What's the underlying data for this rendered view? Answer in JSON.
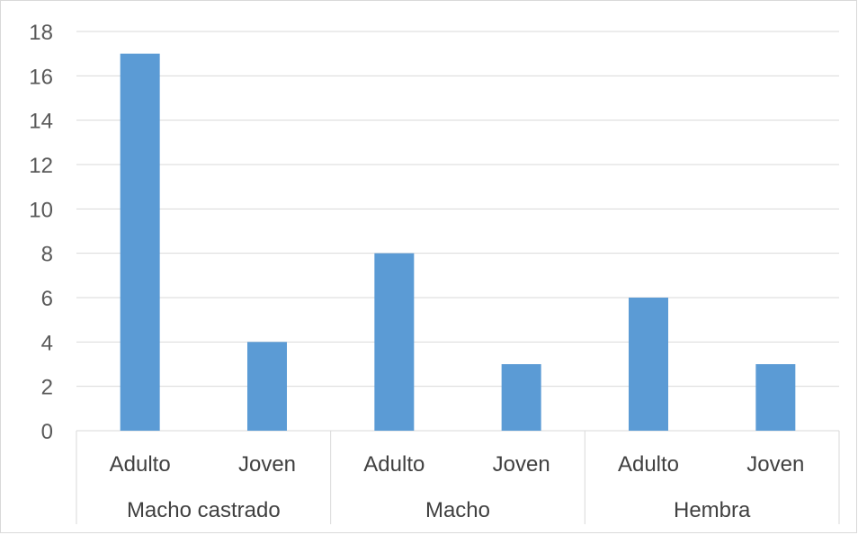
{
  "chart_data": {
    "type": "bar",
    "title": "",
    "xlabel": "",
    "ylabel": "",
    "ylim": [
      0,
      18
    ],
    "yticks": [
      "0",
      "2",
      "4",
      "6",
      "8",
      "10",
      "12",
      "14",
      "16",
      "18"
    ],
    "grid": true,
    "legend": "none",
    "groups": [
      {
        "label": "Macho castrado",
        "categories": [
          "Adulto",
          "Joven"
        ],
        "values": [
          17,
          4
        ]
      },
      {
        "label": "Macho",
        "categories": [
          "Adulto",
          "Joven"
        ],
        "values": [
          8,
          3
        ]
      },
      {
        "label": "Hembra",
        "categories": [
          "Adulto",
          "Joven"
        ],
        "values": [
          6,
          3
        ]
      }
    ],
    "series": [
      {
        "values": [
          17,
          4,
          8,
          3,
          6,
          3
        ],
        "color": "#5b9bd5"
      }
    ]
  }
}
